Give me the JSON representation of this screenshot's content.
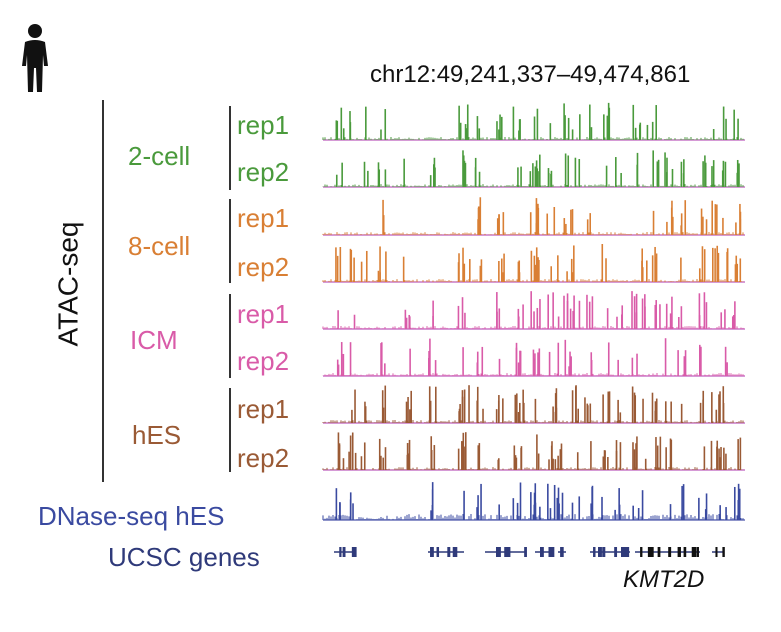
{
  "coordinates": "chr12:49,241,337–49,474,861",
  "assay_label": "ATAC-seq",
  "groups": [
    {
      "name": "2-cell",
      "color": "#4a9a3c",
      "reps": [
        "rep1",
        "rep2"
      ]
    },
    {
      "name": "8-cell",
      "color": "#d97f34",
      "reps": [
        "rep1",
        "rep2"
      ]
    },
    {
      "name": "ICM",
      "color": "#d95ba8",
      "reps": [
        "rep1",
        "rep2"
      ]
    },
    {
      "name": "hES",
      "color": "#9a5a35",
      "reps": [
        "rep1",
        "rep2"
      ]
    }
  ],
  "dnase": {
    "label": "DNase-seq hES",
    "color": "#3a4aa0"
  },
  "genes": {
    "label": "UCSC genes",
    "gene_name": "KMT2D",
    "color": "#2f3a7a"
  },
  "baseline_color": "#c978c8",
  "icons": {
    "person": "human-silhouette-icon"
  }
}
